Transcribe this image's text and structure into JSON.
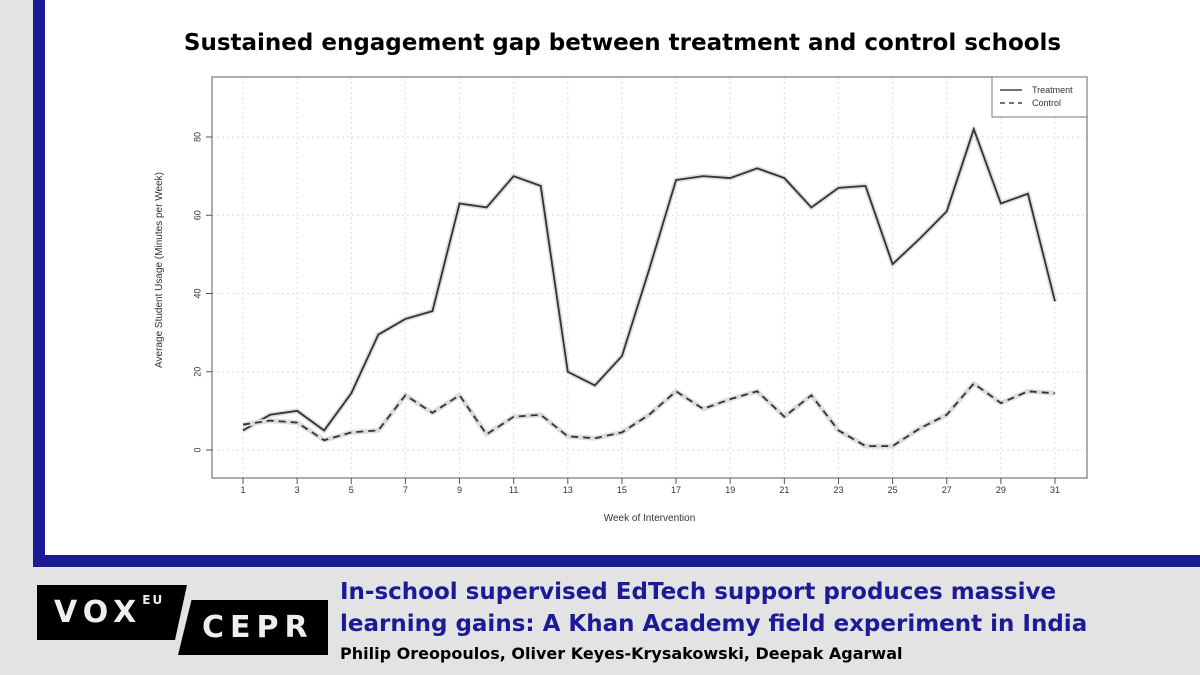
{
  "card": {
    "headline_line1": "In-school supervised EdTech support produces massive",
    "headline_line2": "learning gains: A Khan Academy field experiment in India",
    "authors": "Philip Oreopoulos, Oliver Keyes-Krysakowski, Deepak Agarwal",
    "logo": {
      "vox": "VOX",
      "eu": "EU",
      "cepr": "CEPR"
    }
  },
  "colors": {
    "brand_blue": "#1c1a96",
    "background": "#e3e3e3"
  },
  "chart_data": {
    "type": "line",
    "title": "Sustained engagement gap between treatment and control schools",
    "xlabel": "Week of Intervention",
    "ylabel": "Average Student Usage (Minutes per Week)",
    "xlim": [
      0,
      32
    ],
    "ylim": [
      -5,
      88
    ],
    "xticks": [
      1,
      3,
      5,
      7,
      9,
      11,
      13,
      15,
      17,
      19,
      21,
      23,
      25,
      27,
      29,
      31
    ],
    "yticks": [
      0,
      20,
      40,
      60,
      80
    ],
    "grid": true,
    "legend_position": "top-right",
    "x": [
      1,
      2,
      3,
      4,
      5,
      6,
      7,
      8,
      9,
      10,
      11,
      12,
      13,
      14,
      15,
      16,
      17,
      18,
      19,
      20,
      21,
      22,
      23,
      24,
      25,
      26,
      27,
      28,
      29,
      30,
      31
    ],
    "series": [
      {
        "name": "Treatment",
        "style": "solid",
        "values": [
          5,
          9,
          10,
          5,
          14.5,
          29.5,
          33.5,
          35.5,
          63,
          62,
          70,
          67.5,
          20,
          16.5,
          24,
          46,
          69,
          70,
          69.5,
          72,
          69.5,
          62,
          67,
          67.5,
          47.5,
          54,
          61,
          82,
          63,
          65.5,
          38
        ]
      },
      {
        "name": "Control",
        "style": "dashed",
        "values": [
          6.5,
          7.5,
          7,
          2.5,
          4.5,
          5,
          14,
          9.5,
          14,
          4,
          8.5,
          9,
          3.5,
          3,
          4.5,
          9,
          15,
          10.5,
          13,
          15,
          8.5,
          14,
          5,
          1,
          1,
          5.5,
          9,
          17,
          12,
          15,
          14.5
        ]
      }
    ]
  }
}
